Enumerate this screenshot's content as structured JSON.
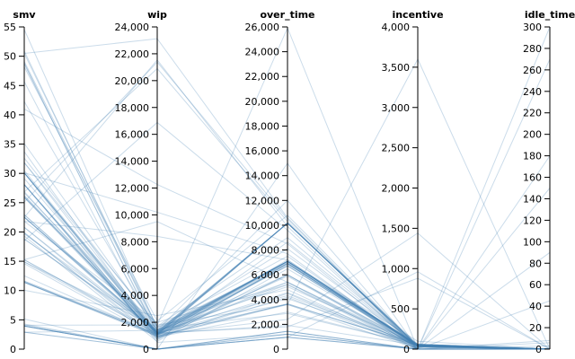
{
  "chart_data": {
    "type": "parallel-coordinates",
    "line_color": "#4682b4",
    "dimensions": [
      {
        "name": "smv",
        "domain": [
          0,
          55
        ],
        "ticks": [
          0,
          5,
          10,
          15,
          20,
          25,
          30,
          35,
          40,
          45,
          50,
          55
        ],
        "tick_labels": [
          "0",
          "5",
          "10",
          "15",
          "20",
          "25",
          "30",
          "35",
          "40",
          "45",
          "50",
          "55"
        ]
      },
      {
        "name": "wip",
        "domain": [
          0,
          24000
        ],
        "ticks": [
          0,
          2000,
          4000,
          6000,
          8000,
          10000,
          12000,
          14000,
          16000,
          18000,
          20000,
          22000,
          24000
        ],
        "tick_labels": [
          "0",
          "2,000",
          "4,000",
          "6,000",
          "8,000",
          "10,000",
          "12,000",
          "14,000",
          "16,000",
          "18,000",
          "20,000",
          "22,000",
          "24,000"
        ]
      },
      {
        "name": "over_time",
        "domain": [
          0,
          26000
        ],
        "ticks": [
          0,
          2000,
          4000,
          6000,
          8000,
          10000,
          12000,
          14000,
          16000,
          18000,
          20000,
          22000,
          24000,
          26000
        ],
        "tick_labels": [
          "0",
          "2,000",
          "4,000",
          "6,000",
          "8,000",
          "10,000",
          "12,000",
          "14,000",
          "16,000",
          "18,000",
          "20,000",
          "22,000",
          "24,000",
          "26,000"
        ]
      },
      {
        "name": "incentive",
        "domain": [
          0,
          4000
        ],
        "ticks": [
          0,
          500,
          1000,
          1500,
          2000,
          2500,
          3000,
          3500,
          4000
        ],
        "tick_labels": [
          "0",
          "500",
          "1,000",
          "1,500",
          "2,000",
          "2,500",
          "3,000",
          "3,500",
          "4,000"
        ]
      },
      {
        "name": "idle_time",
        "domain": [
          0,
          300
        ],
        "ticks": [
          0,
          20,
          40,
          60,
          80,
          100,
          120,
          140,
          160,
          180,
          200,
          220,
          240,
          260,
          280,
          300
        ],
        "tick_labels": [
          "0",
          "20",
          "40",
          "60",
          "80",
          "100",
          "120",
          "140",
          "160",
          "180",
          "200",
          "220",
          "240",
          "260",
          "280",
          "300"
        ]
      }
    ],
    "rows": [
      [
        26.16,
        1108,
        7080,
        98,
        0
      ],
      [
        3.94,
        0,
        960,
        0,
        0
      ],
      [
        11.41,
        968,
        3660,
        50,
        0
      ],
      [
        11.41,
        968,
        3660,
        50,
        0
      ],
      [
        25.9,
        1170,
        1920,
        50,
        0
      ],
      [
        25.9,
        984,
        6720,
        38,
        0
      ],
      [
        3.94,
        0,
        960,
        0,
        0
      ],
      [
        28.08,
        795,
        6900,
        45,
        0
      ],
      [
        19.87,
        733,
        6000,
        34,
        0
      ],
      [
        28.08,
        681,
        6900,
        45,
        0
      ],
      [
        19.87,
        872,
        6000,
        40,
        0
      ],
      [
        19.31,
        578,
        6480,
        45,
        0
      ],
      [
        2.9,
        0,
        960,
        0,
        0
      ],
      [
        28.08,
        1082,
        6900,
        40,
        0
      ],
      [
        30.1,
        1029,
        7200,
        50,
        0
      ],
      [
        30.1,
        1287,
        10170,
        50,
        0
      ],
      [
        22.52,
        1069,
        10170,
        40,
        0
      ],
      [
        22.94,
        1181,
        10170,
        38,
        0
      ],
      [
        30.1,
        1097,
        10170,
        60,
        0
      ],
      [
        18.79,
        1302,
        10170,
        45,
        0
      ],
      [
        22.52,
        1190,
        10170,
        35,
        0
      ],
      [
        15.26,
        1115,
        10170,
        30,
        0
      ],
      [
        11.61,
        1039,
        10170,
        25,
        0
      ],
      [
        20.79,
        1236,
        10170,
        40,
        0
      ],
      [
        4.15,
        0,
        1440,
        0,
        0
      ],
      [
        11.41,
        1085,
        5400,
        26,
        0
      ],
      [
        12.52,
        1038,
        5880,
        30,
        0
      ],
      [
        4.3,
        0,
        1200,
        0,
        0
      ],
      [
        30.1,
        1154,
        4080,
        63,
        0
      ],
      [
        15.26,
        1246,
        7080,
        50,
        0
      ],
      [
        22.53,
        1312,
        7080,
        38,
        0
      ],
      [
        18.79,
        1406,
        7080,
        56,
        0
      ],
      [
        22.94,
        1229,
        7080,
        45,
        0
      ],
      [
        14.89,
        1135,
        6720,
        34,
        0
      ],
      [
        30.1,
        1432,
        7080,
        40,
        0
      ],
      [
        29.12,
        1180,
        6960,
        50,
        0
      ],
      [
        26.16,
        1220,
        7080,
        50,
        0
      ],
      [
        26.66,
        1310,
        7080,
        50,
        0
      ],
      [
        20.79,
        984,
        6720,
        45,
        0
      ],
      [
        11.61,
        1163,
        5220,
        30,
        0
      ],
      [
        3.94,
        0,
        1440,
        0,
        0
      ],
      [
        5.13,
        0,
        1440,
        0,
        0
      ],
      [
        31.83,
        1204,
        7080,
        60,
        0
      ],
      [
        28.08,
        1044,
        7080,
        50,
        0
      ],
      [
        42.27,
        1400,
        5040,
        60,
        0
      ],
      [
        48.68,
        1200,
        4560,
        40,
        0
      ],
      [
        50.48,
        1650,
        7500,
        23,
        0
      ],
      [
        45.67,
        900,
        6840,
        60,
        0
      ],
      [
        48.84,
        1100,
        8640,
        40,
        0
      ],
      [
        50.89,
        1380,
        4320,
        50,
        0
      ],
      [
        54.56,
        1520,
        2880,
        50,
        0
      ],
      [
        49.1,
        1620,
        5400,
        45,
        0
      ],
      [
        30.48,
        1200,
        3600,
        60,
        0
      ],
      [
        32.6,
        1700,
        9000,
        45,
        0
      ],
      [
        35.1,
        1450,
        8100,
        55,
        0
      ],
      [
        33.7,
        900,
        3000,
        50,
        0
      ],
      [
        48.18,
        2100,
        10800,
        30,
        0
      ],
      [
        50.48,
        23122,
        10600,
        0,
        0
      ],
      [
        25.1,
        21385,
        10500,
        0,
        0
      ],
      [
        26.82,
        20900,
        10300,
        0,
        0
      ],
      [
        22.5,
        21540,
        9900,
        0,
        0
      ],
      [
        18.5,
        16882,
        9600,
        0,
        0
      ],
      [
        40.99,
        12261,
        8500,
        0,
        0
      ],
      [
        30.1,
        10200,
        7700,
        0,
        0
      ],
      [
        21.82,
        8400,
        7200,
        0,
        0
      ],
      [
        15.26,
        9500,
        5400,
        0,
        0
      ],
      [
        4.08,
        1800,
        25920,
        0,
        0
      ],
      [
        3.94,
        0,
        15000,
        0,
        0
      ],
      [
        2.9,
        1400,
        12000,
        0,
        0
      ],
      [
        10.05,
        2500,
        4800,
        0,
        0
      ],
      [
        14.61,
        900,
        3600,
        3600,
        0
      ],
      [
        11.41,
        1100,
        2400,
        1440,
        0
      ],
      [
        22.52,
        1200,
        1800,
        880,
        0
      ],
      [
        26.87,
        900,
        4200,
        0,
        270
      ],
      [
        30.1,
        500,
        1200,
        0,
        300
      ],
      [
        31.83,
        1800,
        3600,
        0,
        180
      ],
      [
        21.82,
        2000,
        5200,
        0,
        90
      ],
      [
        25.9,
        1300,
        6000,
        0,
        150
      ],
      [
        28.08,
        800,
        4500,
        0,
        45
      ],
      [
        2.9,
        0,
        960,
        960,
        0
      ],
      [
        3.94,
        0,
        1200,
        0,
        8
      ],
      [
        14.89,
        1600,
        6900,
        0,
        6
      ],
      [
        19.68,
        1400,
        7000,
        0,
        3
      ]
    ]
  }
}
